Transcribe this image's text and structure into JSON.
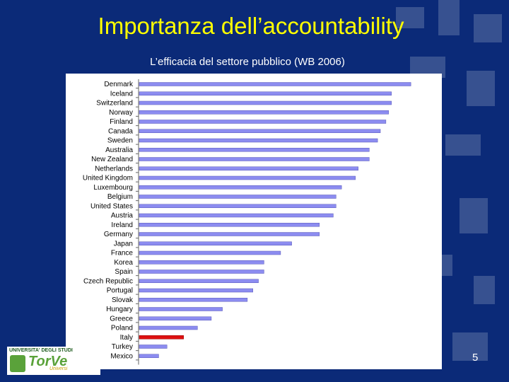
{
  "slide": {
    "title": "Importanza dell’accountability",
    "subtitle": "L’efficacia del settore pubblico (WB 2006)",
    "page_number": "5"
  },
  "logo": {
    "top_text": "UNIVERSITA' DEGLI STUDI",
    "word": "TorVe",
    "sub": "Universi"
  },
  "colors": {
    "background": "#0b2a78",
    "title": "#ffff00",
    "bar": "#8c8cf0",
    "highlight": "#dd1111"
  },
  "chart_data": {
    "type": "bar",
    "orientation": "horizontal",
    "title": "",
    "xlabel": "",
    "ylabel": "",
    "categories": [
      "Denmark",
      "Iceland",
      "Switzerland",
      "Norway",
      "Finland",
      "Canada",
      "Sweden",
      "Australia",
      "New Zealand",
      "Netherlands",
      "United Kingdom",
      "Luxembourg",
      "Belgium",
      "United States",
      "Austria",
      "Ireland",
      "Germany",
      "Japan",
      "France",
      "Korea",
      "Spain",
      "Czech Republic",
      "Portugal",
      "Slovak",
      "Hungary",
      "Greece",
      "Poland",
      "Italy",
      "Turkey",
      "Mexico"
    ],
    "values": [
      98,
      91,
      91,
      90,
      89,
      87,
      86,
      83,
      83,
      79,
      78,
      73,
      71,
      71,
      70,
      65,
      65,
      55,
      51,
      45,
      45,
      43,
      41,
      39,
      30,
      26,
      21,
      16,
      10,
      7
    ],
    "highlight_category": "Italy",
    "xlim": [
      0,
      100
    ],
    "grid": false,
    "legend": "none"
  }
}
